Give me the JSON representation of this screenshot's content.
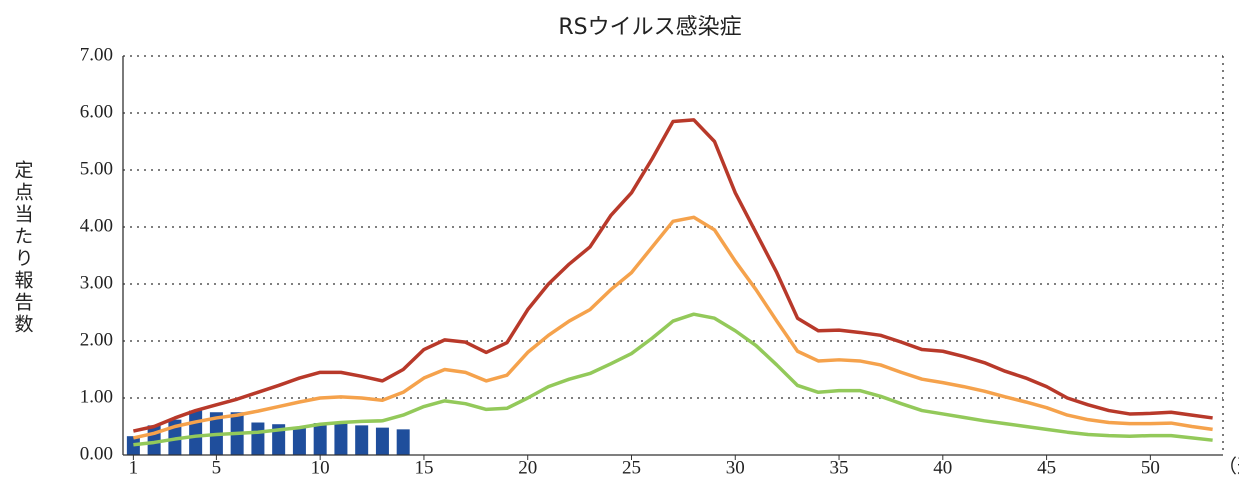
{
  "chart_data": {
    "type": "line",
    "title": "RSウイルス感染症",
    "ylabel": "定点当たり報告数",
    "xlabel": "（週）",
    "x": [
      1,
      2,
      3,
      4,
      5,
      6,
      7,
      8,
      9,
      10,
      11,
      12,
      13,
      14,
      15,
      16,
      17,
      18,
      19,
      20,
      21,
      22,
      23,
      24,
      25,
      26,
      27,
      28,
      29,
      30,
      31,
      32,
      33,
      34,
      35,
      36,
      37,
      38,
      39,
      40,
      41,
      42,
      43,
      44,
      45,
      46,
      47,
      48,
      49,
      50,
      51,
      52,
      53
    ],
    "xlim": [
      0.5,
      53.5
    ],
    "xticks": [
      1,
      5,
      10,
      15,
      20,
      25,
      30,
      35,
      40,
      45,
      50
    ],
    "ylim": [
      0,
      7
    ],
    "yticks": [
      {
        "value": 0,
        "label": "0.00"
      },
      {
        "value": 1,
        "label": "1.00"
      },
      {
        "value": 2,
        "label": "2.00"
      },
      {
        "value": 3,
        "label": "3.00"
      },
      {
        "value": 4,
        "label": "4.00"
      },
      {
        "value": 5,
        "label": "5.00"
      },
      {
        "value": 6,
        "label": "6.00"
      },
      {
        "value": 7,
        "label": "7.00"
      }
    ],
    "grid": true,
    "series": [
      {
        "type": "bar",
        "color": "#1f4e9c",
        "x": [
          1,
          2,
          3,
          4,
          5,
          6,
          7,
          8,
          9,
          10,
          11,
          12,
          13,
          14
        ],
        "values": [
          0.33,
          0.52,
          0.62,
          0.78,
          0.75,
          0.75,
          0.57,
          0.54,
          0.5,
          0.56,
          0.57,
          0.52,
          0.48,
          0.45
        ]
      },
      {
        "type": "line",
        "color": "#b8392a",
        "values": [
          0.42,
          0.5,
          0.65,
          0.78,
          0.88,
          0.98,
          1.1,
          1.22,
          1.35,
          1.45,
          1.45,
          1.38,
          1.3,
          1.5,
          1.85,
          2.02,
          1.98,
          1.8,
          1.97,
          2.55,
          3.0,
          3.35,
          3.65,
          4.2,
          4.6,
          5.2,
          5.85,
          5.88,
          5.5,
          4.6,
          3.9,
          3.2,
          2.4,
          2.18,
          2.19,
          2.15,
          2.1,
          1.98,
          1.85,
          1.82,
          1.73,
          1.62,
          1.47,
          1.35,
          1.2,
          1.0,
          0.88,
          0.78,
          0.72,
          0.73,
          0.75,
          0.7,
          0.65
        ]
      },
      {
        "type": "line",
        "color": "#f5a24c",
        "values": [
          0.3,
          0.38,
          0.5,
          0.58,
          0.65,
          0.7,
          0.77,
          0.85,
          0.93,
          1.0,
          1.02,
          1.0,
          0.96,
          1.1,
          1.35,
          1.5,
          1.45,
          1.3,
          1.4,
          1.8,
          2.1,
          2.35,
          2.55,
          2.9,
          3.2,
          3.65,
          4.1,
          4.17,
          3.95,
          3.4,
          2.9,
          2.35,
          1.82,
          1.65,
          1.67,
          1.65,
          1.58,
          1.45,
          1.33,
          1.27,
          1.2,
          1.12,
          1.02,
          0.93,
          0.83,
          0.7,
          0.62,
          0.57,
          0.55,
          0.55,
          0.56,
          0.5,
          0.45
        ]
      },
      {
        "type": "line",
        "color": "#93c95a",
        "values": [
          0.18,
          0.22,
          0.28,
          0.33,
          0.36,
          0.38,
          0.4,
          0.44,
          0.48,
          0.54,
          0.57,
          0.59,
          0.6,
          0.7,
          0.85,
          0.95,
          0.9,
          0.8,
          0.82,
          1.0,
          1.2,
          1.33,
          1.43,
          1.6,
          1.78,
          2.05,
          2.35,
          2.47,
          2.4,
          2.18,
          1.92,
          1.58,
          1.22,
          1.1,
          1.13,
          1.13,
          1.03,
          0.9,
          0.78,
          0.72,
          0.66,
          0.6,
          0.55,
          0.5,
          0.45,
          0.4,
          0.36,
          0.34,
          0.33,
          0.34,
          0.34,
          0.3,
          0.26
        ]
      }
    ]
  }
}
